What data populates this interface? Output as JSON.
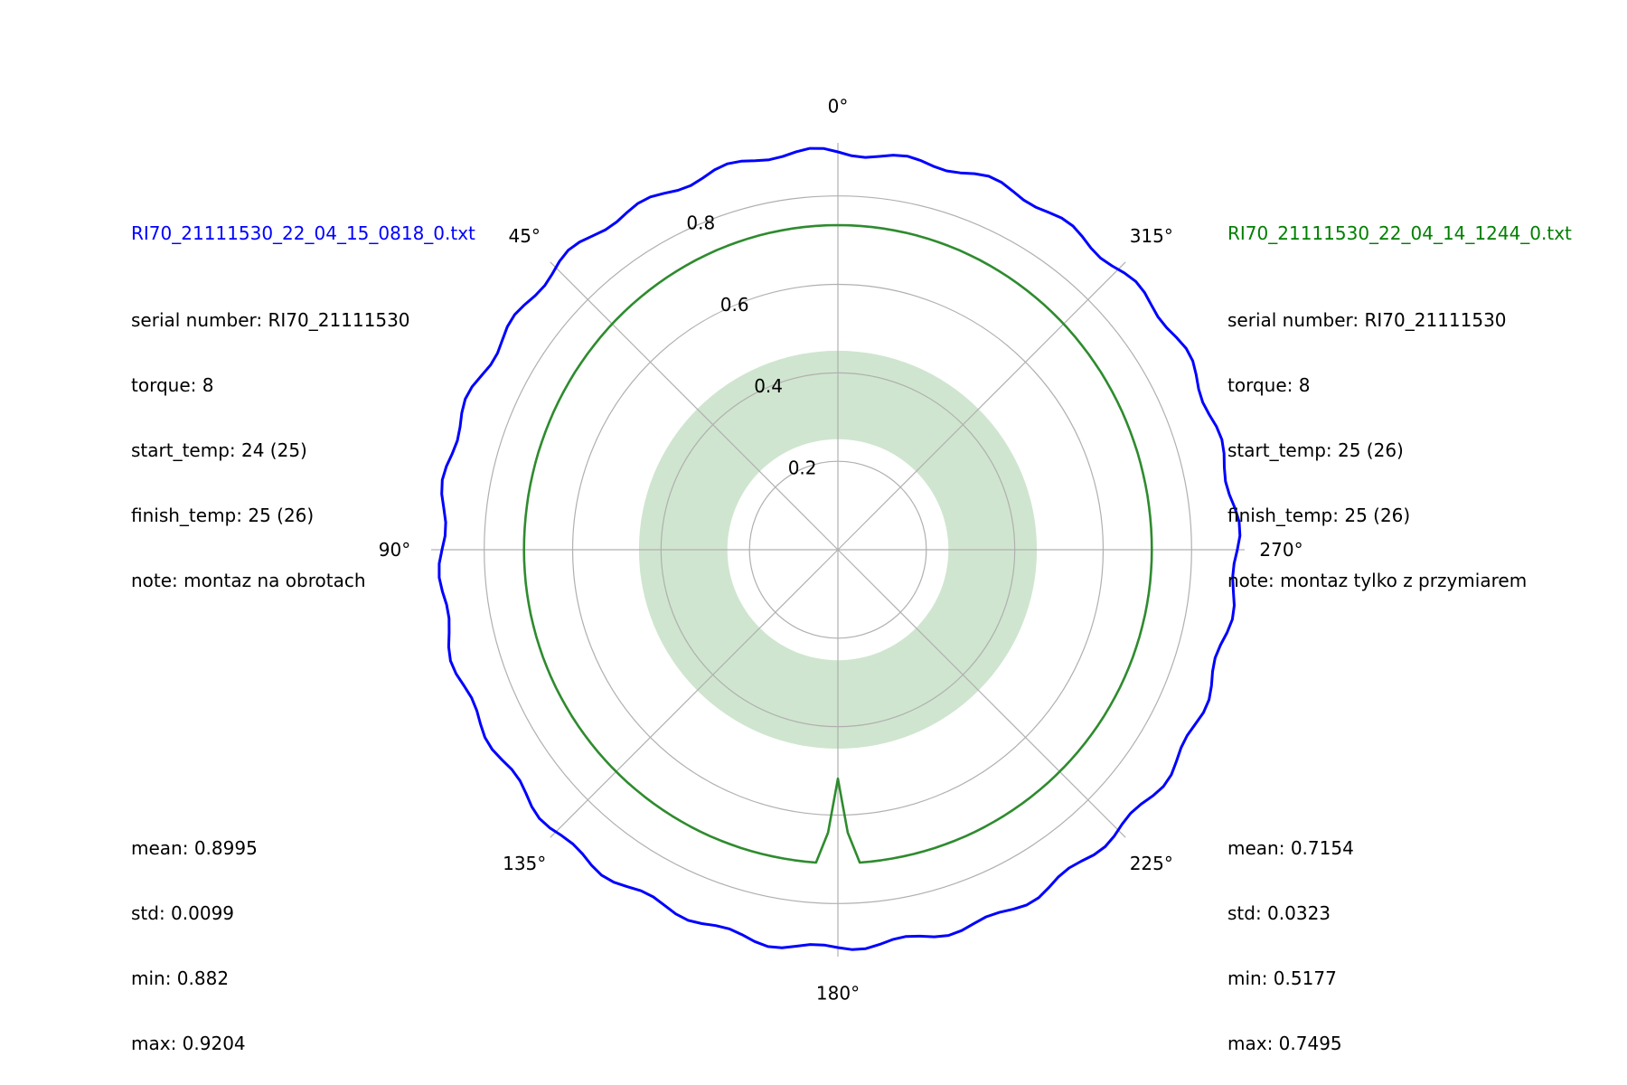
{
  "chart_data": {
    "type": "polar-line",
    "theta_direction": "counterclockwise",
    "theta_zero": "top",
    "angle_ticks": [
      "0°",
      "45°",
      "90°",
      "135°",
      "180°",
      "225°",
      "270°",
      "315°"
    ],
    "angle_tick_values": [
      0,
      45,
      90,
      135,
      180,
      225,
      270,
      315
    ],
    "radial_ticks": [
      "0.2",
      "0.4",
      "0.6",
      "0.8"
    ],
    "radial_tick_values": [
      0.2,
      0.4,
      0.6,
      0.8
    ],
    "rlim": [
      0,
      0.92
    ],
    "grid": true,
    "band": {
      "r_inner": 0.25,
      "r_outer": 0.45,
      "color": "#cfe5cf"
    },
    "series": [
      {
        "name": "RI70_21111530_22_04_15_0818_0.txt",
        "color": "#0000ff",
        "mean": 0.8995,
        "min": 0.882,
        "max": 0.9204
      },
      {
        "name": "RI70_21111530_22_04_14_1244_0.txt",
        "color": "#2e8b2e",
        "mean": 0.7154,
        "min": 0.5177,
        "max": 0.7495,
        "dip_angle_deg": 180
      }
    ]
  },
  "left_info": {
    "filename": "RI70_21111530_22_04_15_0818_0.txt",
    "color": "#0000ff",
    "lines": [
      "serial number: RI70_21111530",
      "torque: 8",
      "start_temp: 24 (25)",
      "finish_temp: 25 (26)",
      "note: montaz na obrotach"
    ],
    "stats": [
      "mean: 0.8995",
      "std: 0.0099",
      "min: 0.882",
      "max: 0.9204"
    ]
  },
  "right_info": {
    "filename": "RI70_21111530_22_04_14_1244_0.txt",
    "color": "#008000",
    "lines": [
      "serial number: RI70_21111530",
      "torque: 8",
      "start_temp: 25 (26)",
      "finish_temp: 25 (26)",
      "note: montaz tylko z przymiarem"
    ],
    "stats": [
      "mean: 0.7154",
      "std: 0.0323",
      "min: 0.5177",
      "max: 0.7495"
    ]
  }
}
